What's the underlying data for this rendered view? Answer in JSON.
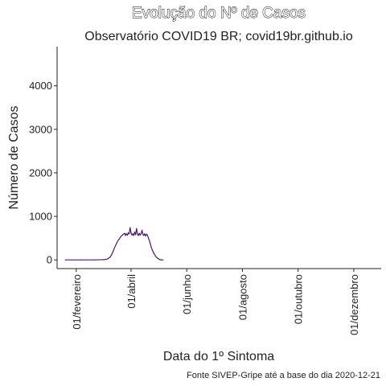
{
  "chart_data": {
    "type": "line",
    "title": "Evolução do Nº de Casos",
    "subtitle": "Observatório COVID19 BR; covid19br.github.io",
    "xlabel": "Data do 1º Sintoma",
    "ylabel": "Número de Casos",
    "caption": "Fonte  SIVEP-Gripe até a base do dia 2020-12-21",
    "ylim": [
      -200,
      4900
    ],
    "xlim": [
      "2020-01-11",
      "2020-12-31"
    ],
    "y_ticks": [
      0,
      1000,
      2000,
      3000,
      4000
    ],
    "x_ticks": [
      {
        "date": "2020-02-01",
        "label": "01/fevereiro"
      },
      {
        "date": "2020-04-01",
        "label": "01/abril"
      },
      {
        "date": "2020-06-01",
        "label": "01/junho"
      },
      {
        "date": "2020-08-01",
        "label": "01/agosto"
      },
      {
        "date": "2020-10-01",
        "label": "01/outubro"
      },
      {
        "date": "2020-12-01",
        "label": "01/dezembro"
      }
    ],
    "grid": false,
    "line_color": "#4b1a6e",
    "series": [
      {
        "x": [
          "2020-01-20",
          "2020-02-05",
          "2020-02-20",
          "2020-03-02",
          "2020-03-06",
          "2020-03-09",
          "2020-03-11",
          "2020-03-13",
          "2020-03-15",
          "2020-03-17",
          "2020-03-19",
          "2020-03-21",
          "2020-03-23",
          "2020-03-25",
          "2020-03-26",
          "2020-03-27",
          "2020-03-28",
          "2020-03-29",
          "2020-03-30",
          "2020-03-31",
          "2020-04-01",
          "2020-04-02",
          "2020-04-03",
          "2020-04-04",
          "2020-04-05",
          "2020-04-06",
          "2020-04-07",
          "2020-04-08",
          "2020-04-09",
          "2020-04-10",
          "2020-04-11",
          "2020-04-12",
          "2020-04-13",
          "2020-04-14",
          "2020-04-15",
          "2020-04-16",
          "2020-04-17",
          "2020-04-18",
          "2020-04-19",
          "2020-04-20",
          "2020-04-21",
          "2020-04-22",
          "2020-04-23",
          "2020-04-24",
          "2020-04-26",
          "2020-04-28",
          "2020-04-30",
          "2020-05-02",
          "2020-05-04",
          "2020-05-06"
        ],
        "y": [
          0,
          0,
          0,
          5,
          20,
          60,
          130,
          230,
          330,
          420,
          480,
          540,
          580,
          610,
          560,
          600,
          570,
          620,
          600,
          740,
          620,
          570,
          600,
          560,
          640,
          580,
          720,
          600,
          560,
          610,
          570,
          600,
          680,
          590,
          560,
          600,
          550,
          590,
          570,
          500,
          450,
          380,
          300,
          240,
          150,
          80,
          40,
          10,
          0,
          0
        ]
      }
    ]
  }
}
